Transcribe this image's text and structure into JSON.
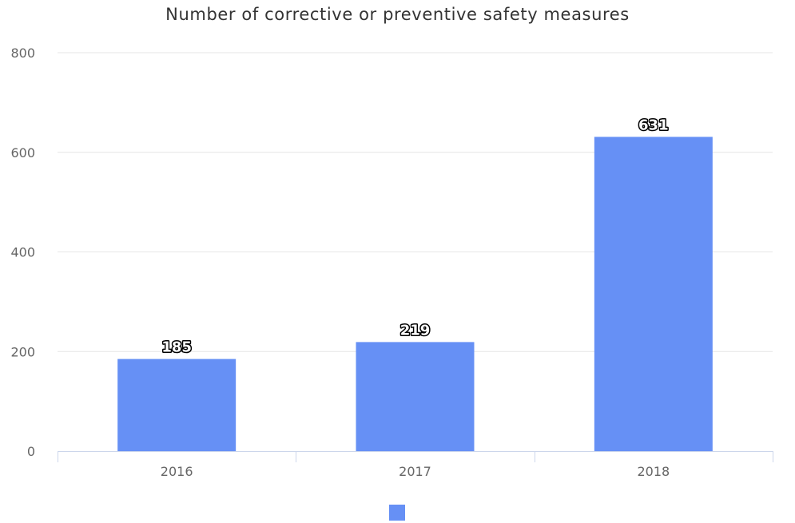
{
  "chart_data": {
    "type": "bar",
    "title": "Number of corrective or preventive safety measures",
    "categories": [
      "2016",
      "2017",
      "2018"
    ],
    "series": [
      {
        "values": [
          185,
          219,
          631
        ],
        "color": "#6690f5"
      }
    ],
    "ylim": [
      0,
      800
    ],
    "yticks": [
      0,
      200,
      400,
      600,
      800
    ],
    "xlabel": "",
    "ylabel": "",
    "grid": true,
    "legend": "bottom-center",
    "data_labels": true
  }
}
